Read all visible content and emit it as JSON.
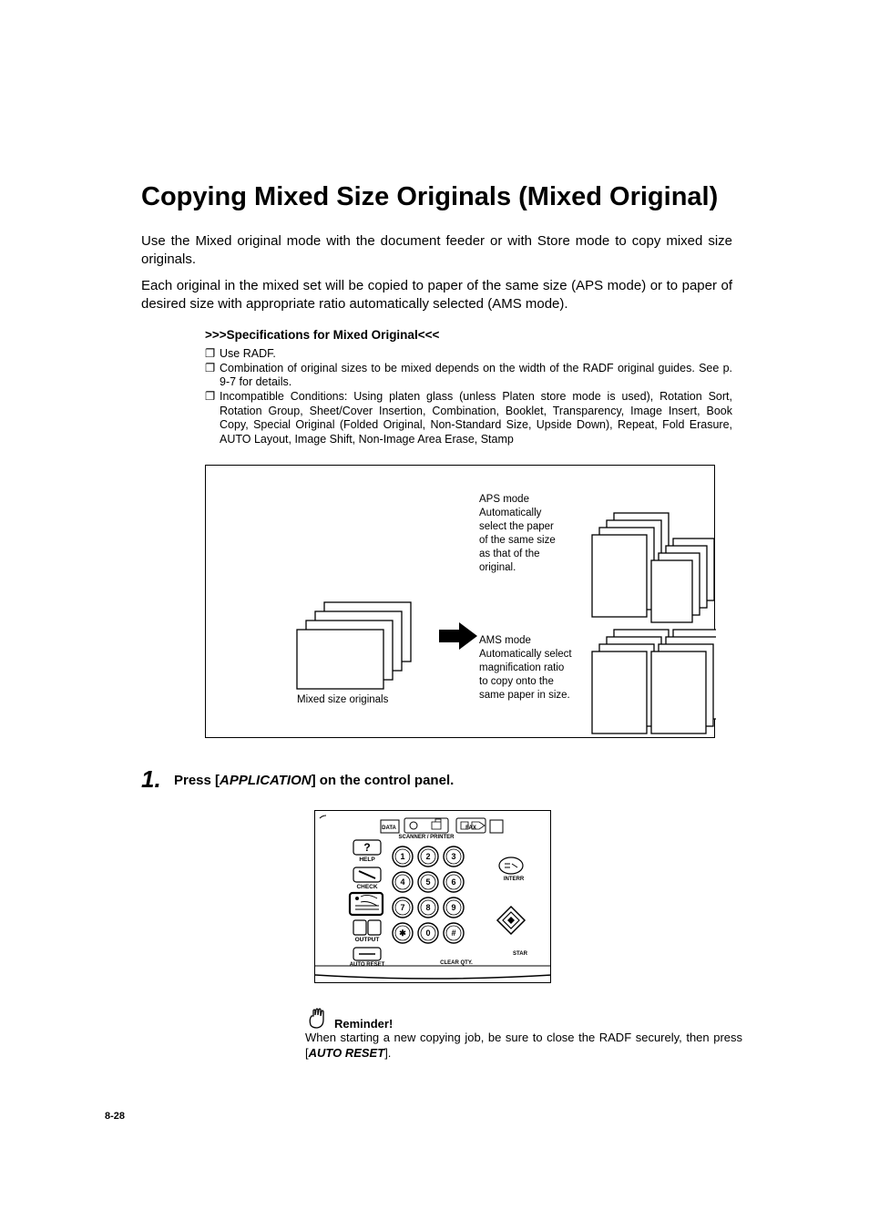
{
  "title": "Copying Mixed Size Originals (Mixed Original)",
  "intro_p1": "Use the Mixed original mode with the document feeder or with Store mode to copy mixed size originals.",
  "intro_p2": "Each original in the mixed set will be copied to paper of the same size (APS mode) or to paper of desired size with appropriate ratio automatically selected (AMS mode).",
  "specs": {
    "heading": ">>>Specifications for Mixed Original<<<",
    "items": [
      "Use RADF.",
      "Combination of original sizes to be mixed depends on the width of the RADF original guides. See p. 9-7 for details.",
      "Incompatible Conditions: Using platen glass (unless Platen store mode is used), Rotation Sort, Rotation Group, Sheet/Cover Insertion, Combination, Booklet, Transparency, Image Insert, Book Copy, Special Original (Folded Original, Non-Standard Size, Upside Down), Repeat, Fold Erasure, AUTO Layout, Image Shift, Non-Image Area Erase, Stamp"
    ]
  },
  "diagram": {
    "mixed_label": "Mixed size originals",
    "aps_lines": [
      "APS mode",
      "Automatically",
      "select the paper",
      "of the same size",
      "as that of the",
      "original."
    ],
    "ams_lines": [
      "AMS mode",
      "Automatically select",
      "magnification ratio",
      "to copy onto the",
      "same paper in size."
    ]
  },
  "step": {
    "num": "1.",
    "pre": "Press [",
    "app": "APPLICATION",
    "post": "] on the control panel."
  },
  "panel": {
    "labels": {
      "data": "DATA",
      "scanner_printer": "SCANNER / PRINTER",
      "fax": "FAX",
      "help": "HELP",
      "check": "CHECK",
      "output": "OUTPUT",
      "auto_reset": "AUTO RESET",
      "interr": "INTERR",
      "star_key": "STAR",
      "clear_qty": "CLEAR QTY."
    },
    "keys": [
      "1",
      "2",
      "3",
      "4",
      "5",
      "6",
      "7",
      "8",
      "9",
      "✱",
      "0",
      "#"
    ]
  },
  "reminder": {
    "head": "Reminder!",
    "line_pre": "When starting a new copying job, be sure to close the RADF securely, then press [",
    "ar": "AUTO RESET",
    "line_post": "]."
  },
  "page_num": "8-28"
}
